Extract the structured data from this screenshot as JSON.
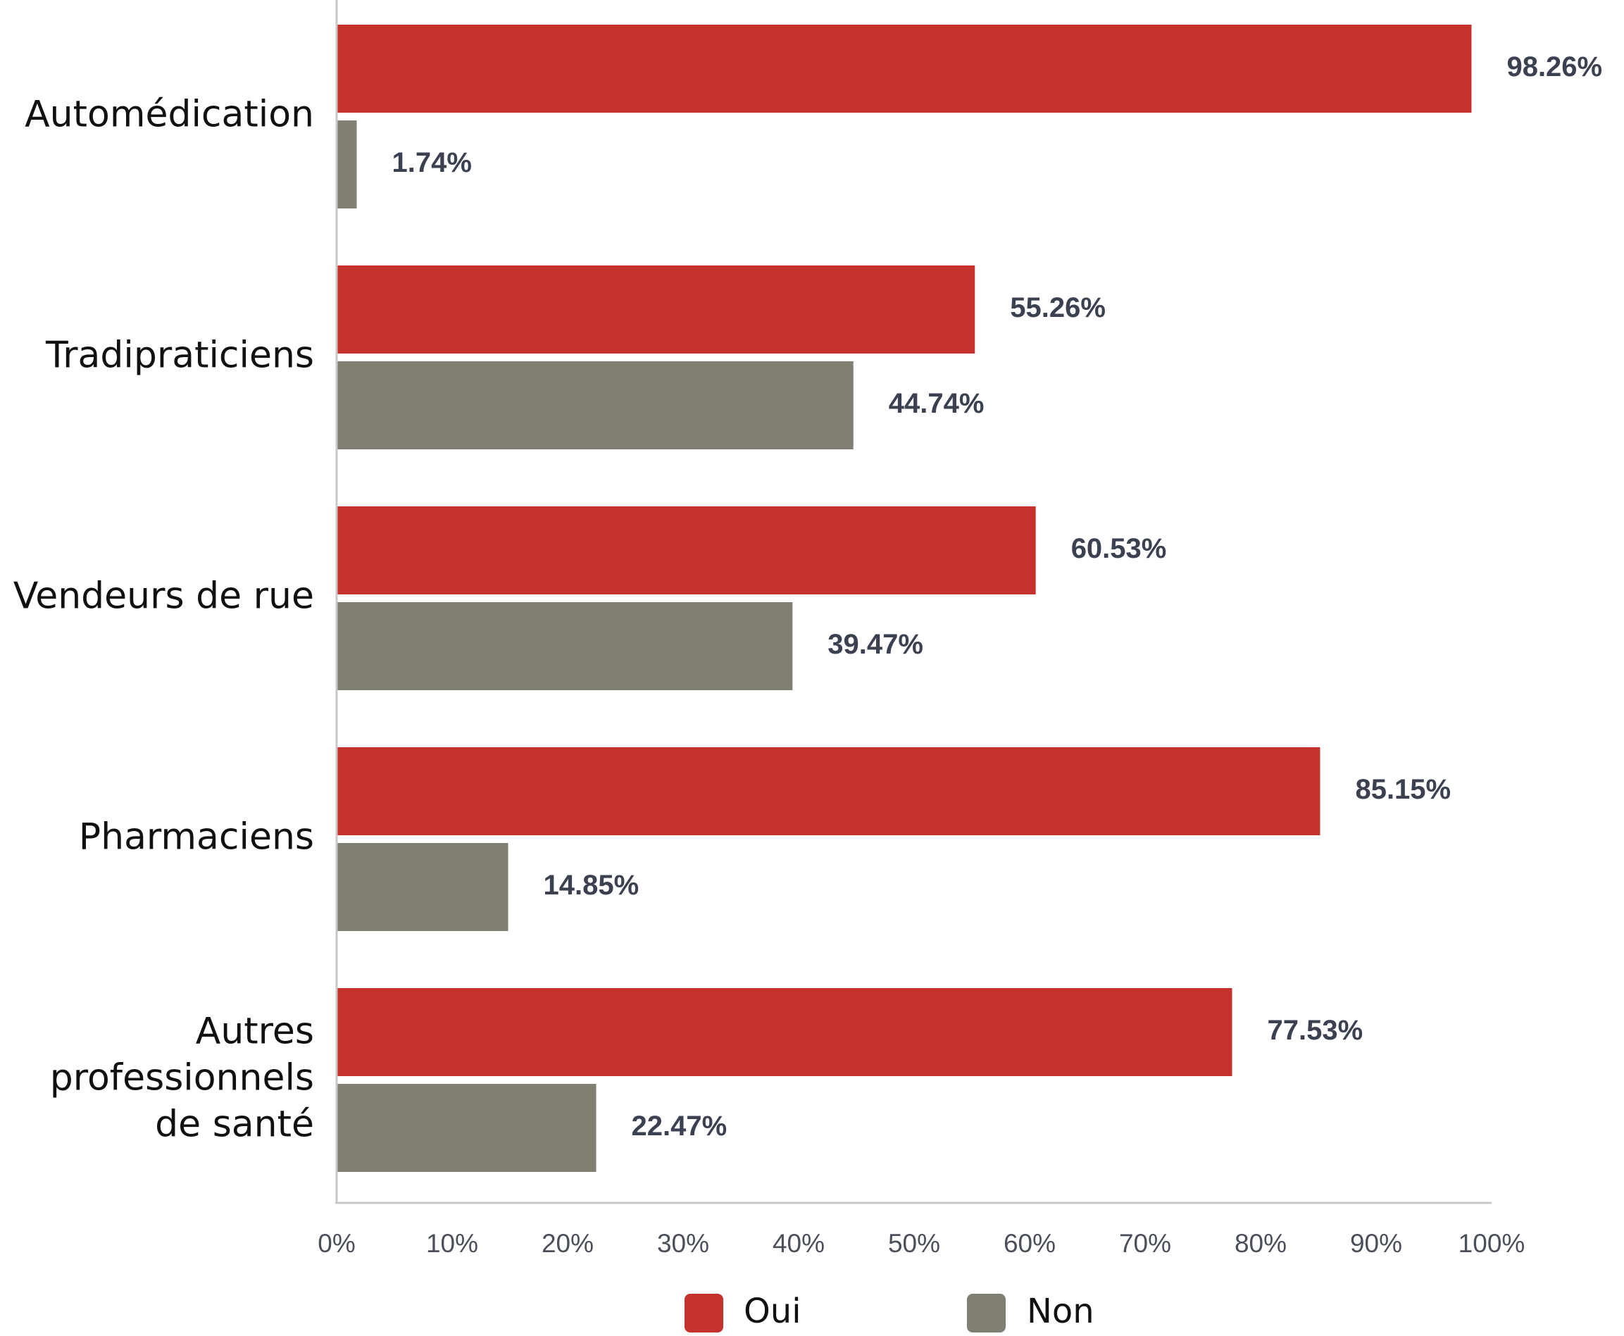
{
  "chart_data": {
    "type": "bar",
    "orientation": "horizontal",
    "categories": [
      [
        "Automédication"
      ],
      [
        "Tradipraticiens"
      ],
      [
        "Vendeurs de rue"
      ],
      [
        "Pharmaciens"
      ],
      [
        "Autres",
        "professionnels",
        "de santé"
      ]
    ],
    "series": [
      {
        "name": "Oui",
        "color": "#c5322e",
        "values": [
          98.26,
          55.26,
          60.53,
          85.15,
          77.53
        ],
        "labels": [
          "98.26%",
          "55.26%",
          "60.53%",
          "85.15%",
          "77.53%"
        ]
      },
      {
        "name": "Non",
        "color": "#807f72",
        "values": [
          1.74,
          44.74,
          39.47,
          14.85,
          22.47
        ],
        "labels": [
          "1.74%",
          "44.74%",
          "39.47%",
          "14.85%",
          "22.47%"
        ]
      }
    ],
    "xlim": [
      0,
      100
    ],
    "xticks": [
      "0%",
      "10%",
      "20%",
      "30%",
      "40%",
      "50%",
      "60%",
      "70%",
      "80%",
      "90%",
      "100%"
    ],
    "grid": false,
    "legend_position": "bottom"
  }
}
